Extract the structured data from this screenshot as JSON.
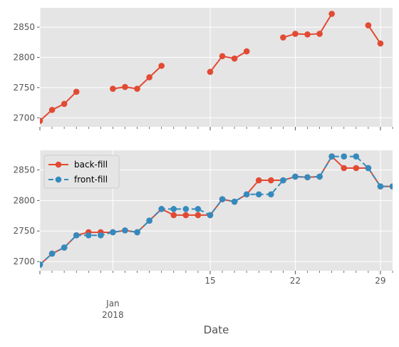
{
  "chart_data": [
    {
      "type": "line",
      "title": "",
      "xlabel": "",
      "ylabel": "",
      "x": [
        "2018-01-01",
        "2018-01-02",
        "2018-01-03",
        "2018-01-04",
        "2018-01-05",
        "2018-01-06",
        "2018-01-07",
        "2018-01-08",
        "2018-01-09",
        "2018-01-10",
        "2018-01-11",
        "2018-01-12",
        "2018-01-13",
        "2018-01-14",
        "2018-01-15",
        "2018-01-16",
        "2018-01-17",
        "2018-01-18",
        "2018-01-19",
        "2018-01-20",
        "2018-01-21",
        "2018-01-22",
        "2018-01-23",
        "2018-01-24",
        "2018-01-25",
        "2018-01-26",
        "2018-01-27",
        "2018-01-28",
        "2018-01-29",
        "2018-01-30"
      ],
      "series": [
        {
          "name": "",
          "color": "#E24A33",
          "values": [
            2695,
            2713,
            2723,
            2743,
            null,
            null,
            2748,
            2751,
            2748,
            2767,
            2786,
            null,
            null,
            null,
            2776,
            2802,
            2798,
            2810,
            null,
            null,
            2833,
            2839,
            2838,
            2839,
            2872,
            null,
            null,
            2853,
            2823,
            null
          ]
        }
      ],
      "ylim": [
        2685,
        2882
      ],
      "yticks": [
        2700,
        2750,
        2800,
        2850
      ],
      "grid": true,
      "show_x_ticklabels": false
    },
    {
      "type": "line",
      "title": "",
      "xlabel": "Date",
      "ylabel": "",
      "x": [
        "2018-01-01",
        "2018-01-02",
        "2018-01-03",
        "2018-01-04",
        "2018-01-05",
        "2018-01-06",
        "2018-01-07",
        "2018-01-08",
        "2018-01-09",
        "2018-01-10",
        "2018-01-11",
        "2018-01-12",
        "2018-01-13",
        "2018-01-14",
        "2018-01-15",
        "2018-01-16",
        "2018-01-17",
        "2018-01-18",
        "2018-01-19",
        "2018-01-20",
        "2018-01-21",
        "2018-01-22",
        "2018-01-23",
        "2018-01-24",
        "2018-01-25",
        "2018-01-26",
        "2018-01-27",
        "2018-01-28",
        "2018-01-29",
        "2018-01-30"
      ],
      "series": [
        {
          "name": "back-fill",
          "color": "#E24A33",
          "dash": "solid",
          "values": [
            2695,
            2713,
            2723,
            2743,
            2748,
            2748,
            2748,
            2751,
            2748,
            2767,
            2786,
            2776,
            2776,
            2776,
            2776,
            2802,
            2798,
            2810,
            2833,
            2833,
            2833,
            2839,
            2838,
            2839,
            2872,
            2853,
            2853,
            2853,
            2823,
            2823
          ]
        },
        {
          "name": "front-fill",
          "color": "#348ABD",
          "dash": "dashed",
          "values": [
            2695,
            2713,
            2723,
            2743,
            2743,
            2743,
            2748,
            2751,
            2748,
            2767,
            2786,
            2786,
            2786,
            2786,
            2776,
            2802,
            2798,
            2810,
            2810,
            2810,
            2833,
            2839,
            2838,
            2839,
            2872,
            2872,
            2872,
            2853,
            2823,
            2823
          ]
        }
      ],
      "ylim": [
        2685,
        2882
      ],
      "yticks": [
        2700,
        2750,
        2800,
        2850
      ],
      "xticks": [
        {
          "x": "2018-01-15",
          "label": "15"
        },
        {
          "x": "2018-01-22",
          "label": "22"
        },
        {
          "x": "2018-01-29",
          "label": "29"
        }
      ],
      "xtick_secondary": {
        "x": "2018-01-07",
        "line1": "Jan",
        "line2": "2018"
      },
      "legend": {
        "position": "upper-left"
      },
      "grid": true
    }
  ]
}
